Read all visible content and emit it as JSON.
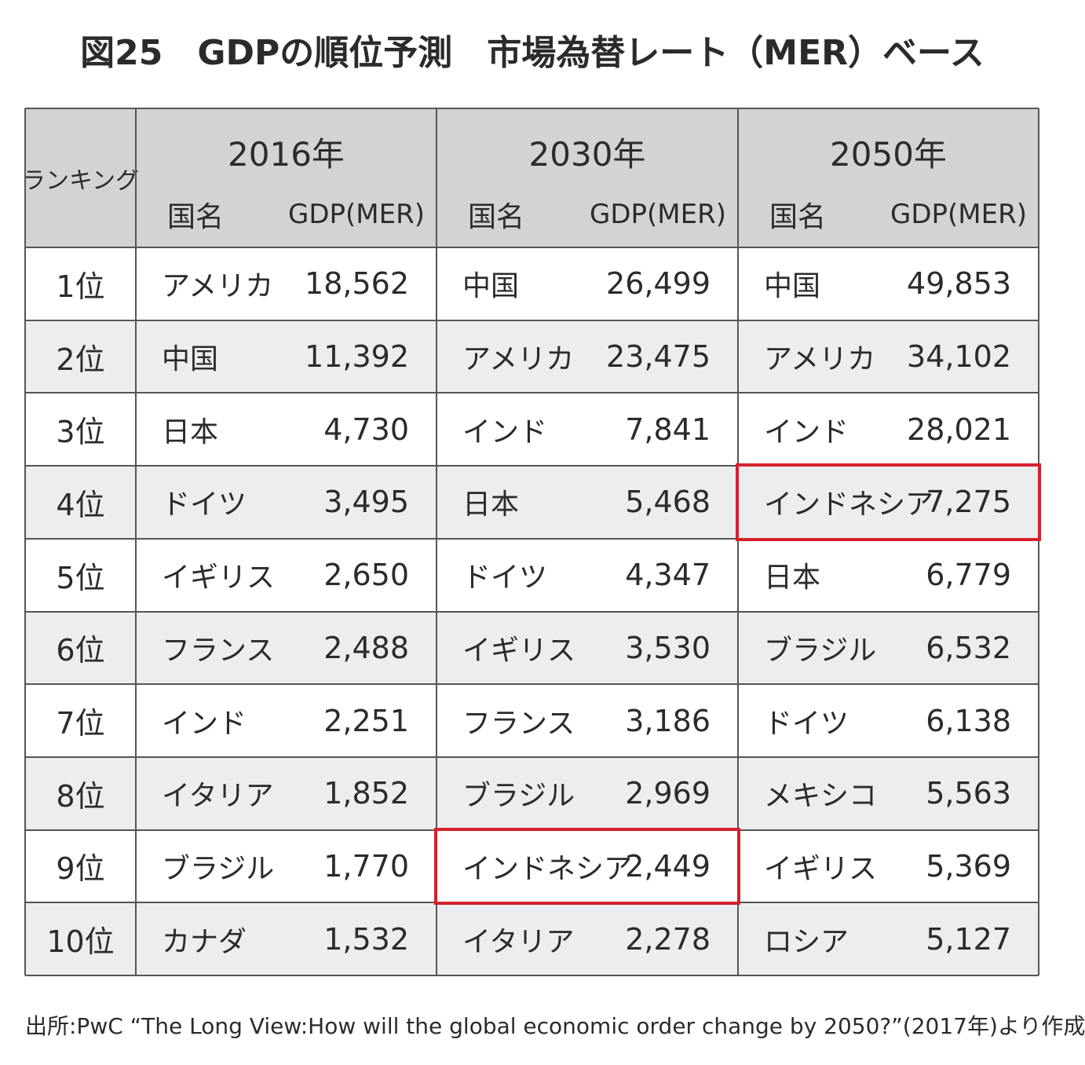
{
  "title": "図25　GDPの順位予測　市場為替レート（MER）ベース",
  "table": {
    "rank_header": "ランキング",
    "columns": [
      {
        "year": "2016年",
        "country_header": "国名",
        "gdp_header": "GDP(MER)"
      },
      {
        "year": "2030年",
        "country_header": "国名",
        "gdp_header": "GDP(MER)"
      },
      {
        "year": "2050年",
        "country_header": "国名",
        "gdp_header": "GDP(MER)"
      }
    ],
    "rows": [
      {
        "rank": "1位",
        "cells": [
          [
            "アメリカ",
            "18,562"
          ],
          [
            "中国",
            "26,499"
          ],
          [
            "中国",
            "49,853"
          ]
        ]
      },
      {
        "rank": "2位",
        "cells": [
          [
            "中国",
            "11,392"
          ],
          [
            "アメリカ",
            "23,475"
          ],
          [
            "アメリカ",
            "34,102"
          ]
        ]
      },
      {
        "rank": "3位",
        "cells": [
          [
            "日本",
            "4,730"
          ],
          [
            "インド",
            "7,841"
          ],
          [
            "インド",
            "28,021"
          ]
        ]
      },
      {
        "rank": "4位",
        "cells": [
          [
            "ドイツ",
            "3,495"
          ],
          [
            "日本",
            "5,468"
          ],
          [
            "インドネシア",
            "7,275"
          ]
        ]
      },
      {
        "rank": "5位",
        "cells": [
          [
            "イギリス",
            "2,650"
          ],
          [
            "ドイツ",
            "4,347"
          ],
          [
            "日本",
            "6,779"
          ]
        ]
      },
      {
        "rank": "6位",
        "cells": [
          [
            "フランス",
            "2,488"
          ],
          [
            "イギリス",
            "3,530"
          ],
          [
            "ブラジル",
            "6,532"
          ]
        ]
      },
      {
        "rank": "7位",
        "cells": [
          [
            "インド",
            "2,251"
          ],
          [
            "フランス",
            "3,186"
          ],
          [
            "ドイツ",
            "6,138"
          ]
        ]
      },
      {
        "rank": "8位",
        "cells": [
          [
            "イタリア",
            "1,852"
          ],
          [
            "ブラジル",
            "2,969"
          ],
          [
            "メキシコ",
            "5,563"
          ]
        ]
      },
      {
        "rank": "9位",
        "cells": [
          [
            "ブラジル",
            "1,770"
          ],
          [
            "インドネシア",
            "2,449"
          ],
          [
            "イギリス",
            "5,369"
          ]
        ]
      },
      {
        "rank": "10位",
        "cells": [
          [
            "カナダ",
            "1,532"
          ],
          [
            "イタリア",
            "2,278"
          ],
          [
            "ロシア",
            "5,127"
          ]
        ]
      }
    ]
  },
  "source": "出所:PwC “The Long View:How will the global economic order change by 2050?”(2017年)より作成"
}
